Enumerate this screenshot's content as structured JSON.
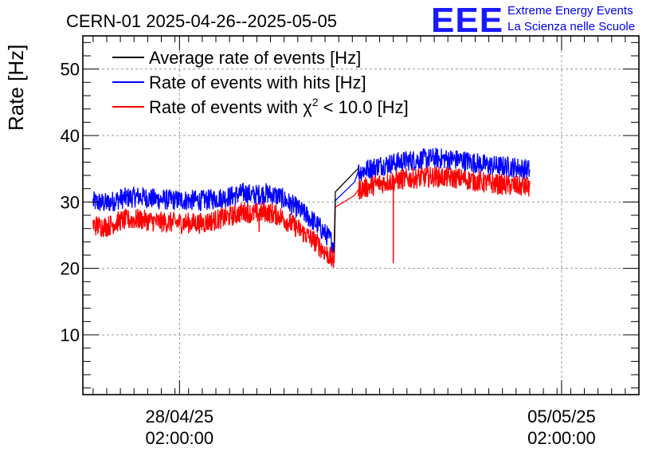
{
  "header": {
    "title": "CERN-01 2025-04-26--2025-05-05",
    "logo_text": "EEE",
    "org_line1": "Extreme Energy Events",
    "org_line2": "La Scienza nelle Scuole"
  },
  "colors": {
    "average": "#000000",
    "hits": "#0000ff",
    "chi2": "#ff0000",
    "logo": "#0000ee",
    "grid": "#999999"
  },
  "chart_data": {
    "type": "line",
    "title": "CERN-01 2025-04-26--2025-05-05",
    "ylabel": "Rate [Hz]",
    "xlabel": "",
    "ylim": [
      1,
      55
    ],
    "xlim": [
      "2025-04-26 07:30:00",
      "2025-05-06 12:00:00"
    ],
    "yticks": [
      10,
      20,
      30,
      40,
      50
    ],
    "xticks": [
      {
        "at": "2025-04-28 02:00:00",
        "line1": "28/04/25",
        "line2": "02:00:00"
      },
      {
        "at": "2025-05-05 02:00:00",
        "line1": "05/05/25",
        "line2": "02:00:00"
      }
    ],
    "grid": true,
    "legend_position": "top-left",
    "series": [
      {
        "name": "Average rate of events [Hz]",
        "color": "#000000",
        "points": [
          [
            "2025-04-30 22:00:00",
            22.5
          ],
          [
            "2025-04-30 22:30:00",
            31.5
          ],
          [
            "2025-05-01 07:00:00",
            34.5
          ],
          [
            "2025-05-01 08:30:00",
            35.0
          ]
        ]
      },
      {
        "name": "Rate of events with hits [Hz]",
        "color": "#0000ff",
        "points": [
          [
            "2025-04-26 12:00:00",
            30.0
          ],
          [
            "2025-04-26 18:00:00",
            29.8
          ],
          [
            "2025-04-27 00:00:00",
            30.5
          ],
          [
            "2025-04-27 08:00:00",
            30.8
          ],
          [
            "2025-04-27 16:00:00",
            30.4
          ],
          [
            "2025-04-28 00:00:00",
            30.3
          ],
          [
            "2025-04-28 12:00:00",
            30.2
          ],
          [
            "2025-04-29 00:00:00",
            30.8
          ],
          [
            "2025-04-29 07:00:00",
            31.4
          ],
          [
            "2025-04-29 10:00:00",
            31.0
          ],
          [
            "2025-04-29 16:00:00",
            31.3
          ],
          [
            "2025-04-29 22:00:00",
            30.8
          ],
          [
            "2025-04-30 06:00:00",
            29.0
          ],
          [
            "2025-04-30 14:00:00",
            26.8
          ],
          [
            "2025-04-30 20:00:00",
            24.5
          ],
          [
            "2025-04-30 22:00:00",
            23.5
          ],
          [
            "2025-04-30 22:30:00",
            30.2
          ],
          [
            "2025-05-01 07:00:00",
            33.0
          ],
          [
            "2025-05-01 08:30:00",
            34.5
          ],
          [
            "2025-05-01 18:00:00",
            35.5
          ],
          [
            "2025-05-02 06:00:00",
            36.2
          ],
          [
            "2025-05-02 18:00:00",
            36.6
          ],
          [
            "2025-05-03 06:00:00",
            36.3
          ],
          [
            "2025-05-03 18:00:00",
            35.5
          ],
          [
            "2025-05-04 06:00:00",
            35.2
          ],
          [
            "2025-05-04 12:00:00",
            34.8
          ]
        ]
      },
      {
        "name": "Rate of events with χ2 < 10.0 [Hz]",
        "color": "#ff0000",
        "points": [
          [
            "2025-04-26 12:00:00",
            26.5
          ],
          [
            "2025-04-26 18:00:00",
            26.3
          ],
          [
            "2025-04-27 00:00:00",
            27.2
          ],
          [
            "2025-04-27 08:00:00",
            27.4
          ],
          [
            "2025-04-27 16:00:00",
            27.0
          ],
          [
            "2025-04-28 00:00:00",
            26.9
          ],
          [
            "2025-04-28 12:00:00",
            26.8
          ],
          [
            "2025-04-29 00:00:00",
            27.8
          ],
          [
            "2025-04-29 07:00:00",
            28.6
          ],
          [
            "2025-04-29 10:00:00",
            28.2
          ],
          [
            "2025-04-29 16:00:00",
            28.5
          ],
          [
            "2025-04-29 22:00:00",
            27.9
          ],
          [
            "2025-04-30 06:00:00",
            26.0
          ],
          [
            "2025-04-30 14:00:00",
            23.9
          ],
          [
            "2025-04-30 20:00:00",
            21.8
          ],
          [
            "2025-04-30 22:00:00",
            20.8
          ],
          [
            "2025-04-30 22:30:00",
            29.2
          ],
          [
            "2025-05-01 07:00:00",
            31.0
          ],
          [
            "2025-05-01 08:30:00",
            31.8
          ],
          [
            "2025-05-01 18:00:00",
            32.8
          ],
          [
            "2025-05-02 06:00:00",
            33.5
          ],
          [
            "2025-05-02 18:00:00",
            33.8
          ],
          [
            "2025-05-03 06:00:00",
            33.5
          ],
          [
            "2025-05-03 18:00:00",
            32.8
          ],
          [
            "2025-05-04 06:00:00",
            32.4
          ],
          [
            "2025-05-04 12:00:00",
            32.2
          ]
        ]
      }
    ],
    "annotations": [
      {
        "series": "Rate of events with χ2 < 10.0 [Hz]",
        "at": "2025-05-02 00:00:00",
        "y": 20.8,
        "kind": "dip"
      },
      {
        "series": "Rate of events with χ2 < 10.0 [Hz]",
        "at": "2025-04-29 13:00:00",
        "y": 25.5,
        "kind": "dip"
      }
    ],
    "legend": [
      {
        "label": "Average rate of events [Hz]",
        "color": "#000000"
      },
      {
        "label": "Rate of events with hits [Hz]",
        "color": "#0000ff"
      },
      {
        "label_prefix": "Rate of events with χ",
        "label_sup": "2",
        "label_suffix": " < 10.0 [Hz]",
        "color": "#ff0000"
      }
    ]
  }
}
